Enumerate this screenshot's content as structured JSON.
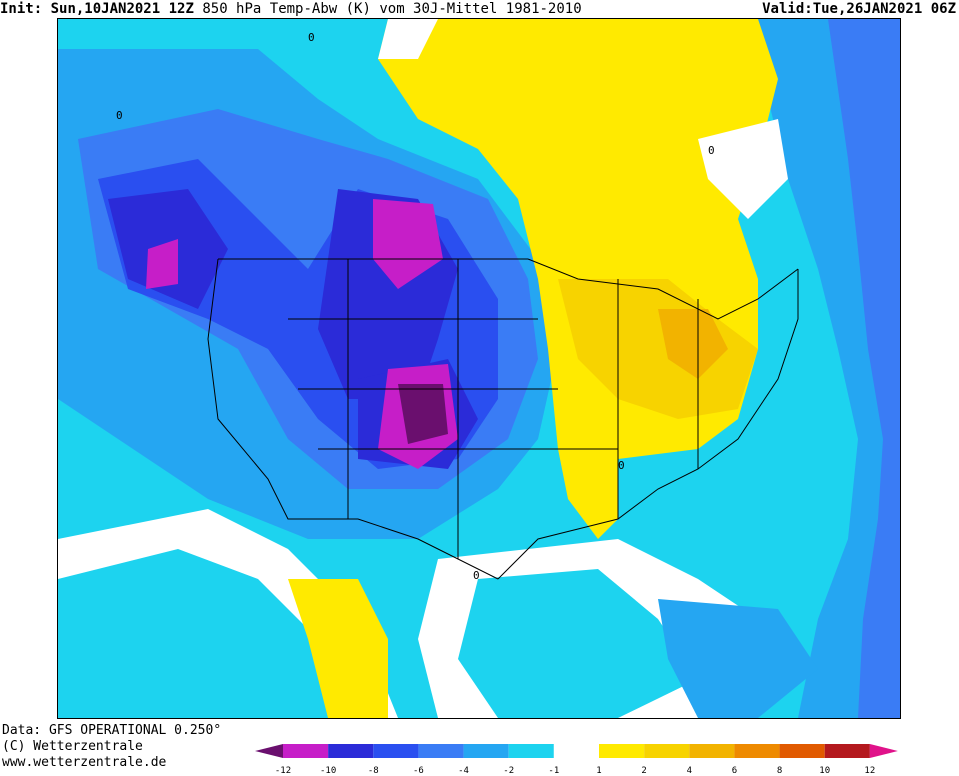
{
  "header": {
    "init_label": "Init:",
    "init_date": "Sun,10JAN2021",
    "init_hour": "12Z",
    "product": "850 hPa Temp-Abw (K) vom 30J-Mittel 1981-2010",
    "valid_label": "Valid:",
    "valid_time": "Tue,26JAN2021 06Z"
  },
  "footer": {
    "data_source": "Data: GFS OPERATIONAL 0.250°",
    "copyright": "(C) Wetterzentrale",
    "website": "www.wetterzentrale.de"
  },
  "legend": {
    "unit": "K",
    "classes": [
      {
        "color": "#6a0f6e"
      },
      {
        "color": "#c61ec8"
      },
      {
        "color": "#2b2bd8"
      },
      {
        "color": "#2a4ff0"
      },
      {
        "color": "#3a7cf5"
      },
      {
        "color": "#25a6f2"
      },
      {
        "color": "#1dd3ef"
      },
      {
        "color": "#ffffff"
      },
      {
        "color": "#ffea00"
      },
      {
        "color": "#f7d300"
      },
      {
        "color": "#f2b300"
      },
      {
        "color": "#ee8a00"
      },
      {
        "color": "#e15a00"
      },
      {
        "color": "#b4191e"
      },
      {
        "color": "#e0128a"
      }
    ],
    "tick_labels": [
      "-12",
      "-10",
      "-8",
      "-6",
      "-4",
      "-2",
      "-1",
      "1",
      "2",
      "4",
      "6",
      "8",
      "10",
      "12"
    ]
  },
  "map": {
    "contour_label": "0",
    "regions": [
      {
        "name": "western-us-cold-core",
        "anomaly_k": -12
      },
      {
        "name": "eastern-pacific-cold-anomaly",
        "anomaly_k": -10
      },
      {
        "name": "northern-canada-warm-anomaly",
        "anomaly_k": 2
      },
      {
        "name": "ohio-valley-warm-anomaly",
        "anomaly_k": 4
      },
      {
        "name": "gulf-of-mexico-cold-anomaly",
        "anomaly_k": -4
      },
      {
        "name": "mexico-warm-anomaly",
        "anomaly_k": 2
      }
    ]
  }
}
